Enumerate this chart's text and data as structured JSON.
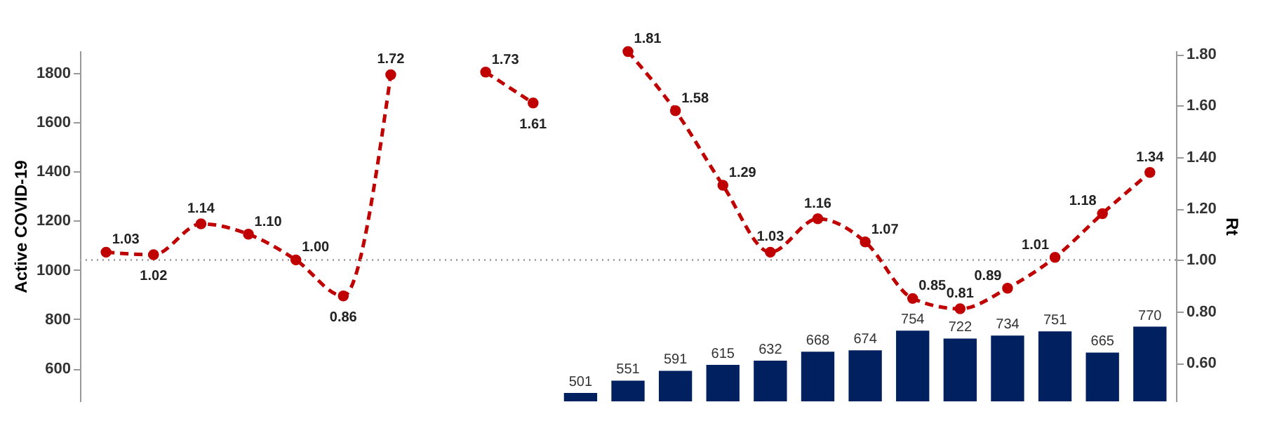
{
  "chart_data": {
    "type": "bar",
    "ylabel": "Active COVID-19",
    "y2label": "Rt",
    "categories": [
      null,
      null,
      null,
      null,
      null,
      null,
      null,
      null,
      null,
      null,
      null,
      null,
      null,
      null,
      null,
      null,
      null,
      null,
      null,
      null,
      null,
      null,
      null
    ],
    "series": [
      {
        "color": "#002060",
        "values": [
          null,
          null,
          null,
          null,
          null,
          null,
          null,
          null,
          null,
          null,
          501,
          551,
          591,
          615,
          632,
          668,
          674,
          754,
          722,
          734,
          751,
          665,
          770
        ]
      },
      {
        "type": "line",
        "axis": "y2",
        "color": "#c00000",
        "values": [
          1.03,
          1.02,
          1.14,
          1.1,
          1.0,
          0.86,
          1.72,
          null,
          1.73,
          1.61,
          null,
          1.81,
          1.58,
          1.29,
          1.03,
          1.16,
          1.07,
          0.85,
          0.81,
          0.89,
          1.01,
          1.18,
          1.34
        ],
        "value_labels": [
          "1.03",
          "1.02",
          "1.14",
          "1.10",
          "1.00",
          "0.86",
          "1.72",
          null,
          "1.73",
          "1.61",
          null,
          "1.81",
          "1.58",
          "1.29",
          "1.03",
          "1.16",
          "1.07",
          "0.85",
          "0.81",
          "0.89",
          "1.01",
          "1.18",
          "1.34"
        ]
      }
    ],
    "ylim": [
      467,
      1890
    ],
    "yticks": [
      600,
      800,
      1000,
      1200,
      1400,
      1600,
      1800
    ],
    "y2lim": [
      0.45,
      1.814
    ],
    "y2ticks": [
      {
        "value": 0.6,
        "label": "0.60"
      },
      {
        "value": 0.8,
        "label": "0.80"
      },
      {
        "value": 1.0,
        "label": "1.00"
      },
      {
        "value": 1.2,
        "label": "1.20"
      },
      {
        "value": 1.4,
        "label": "1.40"
      },
      {
        "value": 1.6,
        "label": "1.60"
      },
      {
        "value": 1.8,
        "label": "1.80"
      }
    ],
    "ref_lines": [
      {
        "axis": "y2",
        "value": 1.0,
        "color": "#a6a6a6",
        "line_style": "dotted"
      }
    ],
    "data_labels": true,
    "marker": "circle",
    "line_style": "dashed",
    "grid": false
  }
}
